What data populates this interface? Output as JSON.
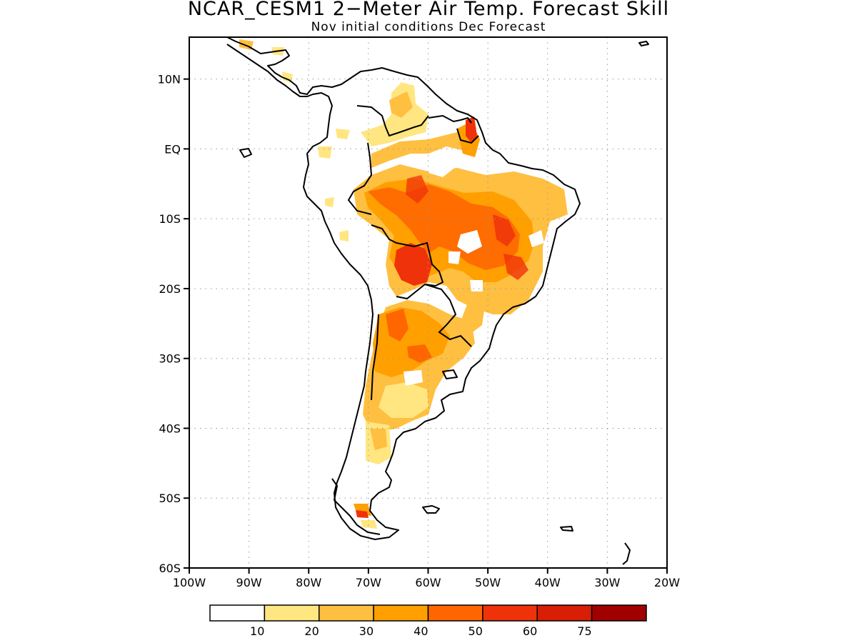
{
  "title": "NCAR_CESM1 2−Meter Air Temp. Forecast Skill",
  "subtitle": "Nov initial conditions  Dec Forecast",
  "map": {
    "lon_range": [
      -100,
      -20
    ],
    "lat_range": [
      -60,
      16
    ],
    "lat_ticks": [
      {
        "value": 10,
        "label": "10N"
      },
      {
        "value": 0,
        "label": "EQ"
      },
      {
        "value": -10,
        "label": "10S"
      },
      {
        "value": -20,
        "label": "20S"
      },
      {
        "value": -30,
        "label": "30S"
      },
      {
        "value": -40,
        "label": "40S"
      },
      {
        "value": -50,
        "label": "50S"
      },
      {
        "value": -60,
        "label": "60S"
      }
    ],
    "lon_ticks": [
      {
        "value": -100,
        "label": "100W"
      },
      {
        "value": -90,
        "label": "90W"
      },
      {
        "value": -80,
        "label": "80W"
      },
      {
        "value": -70,
        "label": "70W"
      },
      {
        "value": -60,
        "label": "60W"
      },
      {
        "value": -50,
        "label": "50W"
      },
      {
        "value": -40,
        "label": "40W"
      },
      {
        "value": -30,
        "label": "30W"
      },
      {
        "value": -20,
        "label": "20W"
      }
    ]
  },
  "colorbar": {
    "colors": [
      "#ffffff",
      "#ffe680",
      "#ffbf40",
      "#ff9f00",
      "#ff6600",
      "#f0320a",
      "#d81e05",
      "#a00000"
    ],
    "labels": [
      "10",
      "20",
      "30",
      "40",
      "50",
      "60",
      "75"
    ]
  },
  "chart_data": {
    "type": "heatmap",
    "title": "NCAR_CESM1 2−Meter Air Temp. Forecast Skill",
    "subtitle": "Nov initial conditions  Dec Forecast",
    "levels": [
      10,
      20,
      30,
      40,
      50,
      60,
      75
    ],
    "hotspots": [
      {
        "lon": -64,
        "lat": -17,
        "level": 60
      },
      {
        "lon": -61,
        "lat": -8,
        "level": 50
      },
      {
        "lon": -67,
        "lat": -6,
        "level": 50
      },
      {
        "lon": -49,
        "lat": -12,
        "level": 50
      },
      {
        "lon": -44,
        "lat": -17,
        "level": 50
      },
      {
        "lon": -56,
        "lat": 3,
        "level": 50
      },
      {
        "lon": -64,
        "lat": -25,
        "level": 40
      },
      {
        "lon": -61,
        "lat": -29,
        "level": 40
      },
      {
        "lon": -52,
        "lat": -18,
        "level": 40
      },
      {
        "lon": -72,
        "lat": -52,
        "level": 40
      },
      {
        "lon": -56,
        "lat": 2,
        "level": 40
      }
    ]
  }
}
